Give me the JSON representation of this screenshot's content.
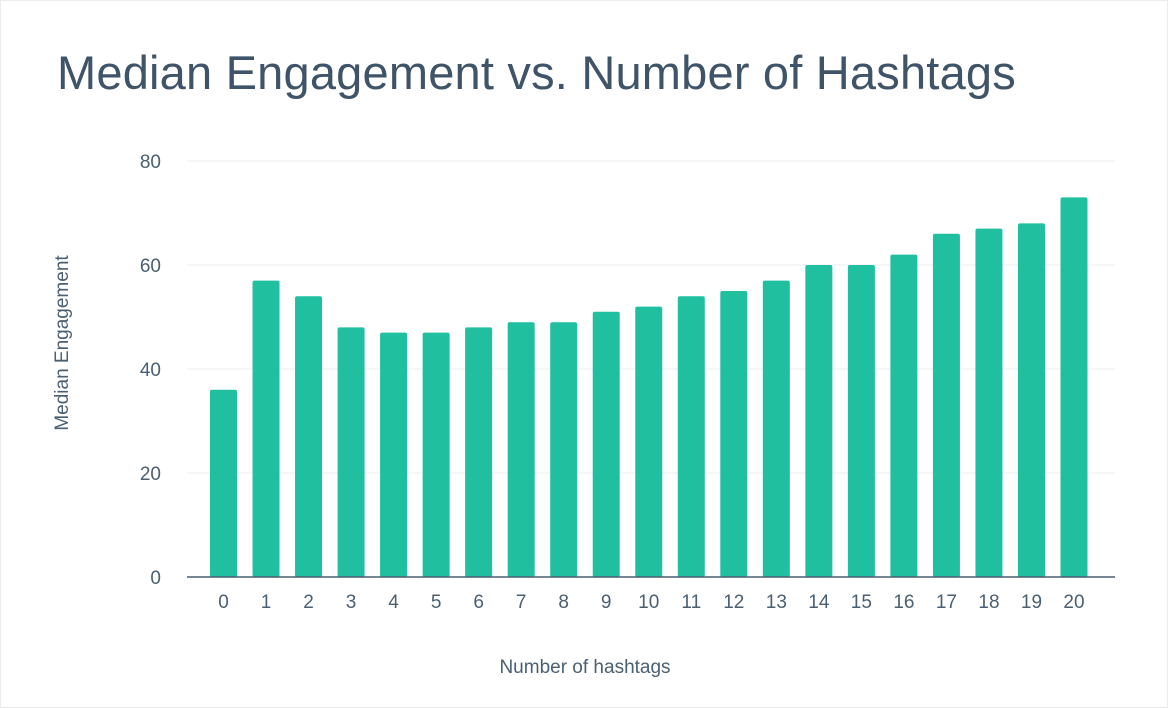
{
  "chart_data": {
    "type": "bar",
    "title": "Median Engagement vs. Number of Hashtags",
    "xlabel": "Number of hashtags",
    "ylabel": "Median Engagement",
    "categories": [
      "0",
      "1",
      "2",
      "3",
      "4",
      "5",
      "6",
      "7",
      "8",
      "9",
      "10",
      "11",
      "12",
      "13",
      "14",
      "15",
      "16",
      "17",
      "18",
      "19",
      "20"
    ],
    "values": [
      36,
      57,
      54,
      48,
      47,
      47,
      48,
      49,
      49,
      51,
      52,
      54,
      55,
      57,
      60,
      60,
      62,
      66,
      67,
      68,
      73
    ],
    "ylim": [
      0,
      80
    ],
    "yticks": [
      "0",
      "20",
      "40",
      "60",
      "80"
    ],
    "grid": true,
    "bar_color": "#1fbf9f",
    "text_color": "#4a5f72",
    "title_color": "#3f5468"
  }
}
